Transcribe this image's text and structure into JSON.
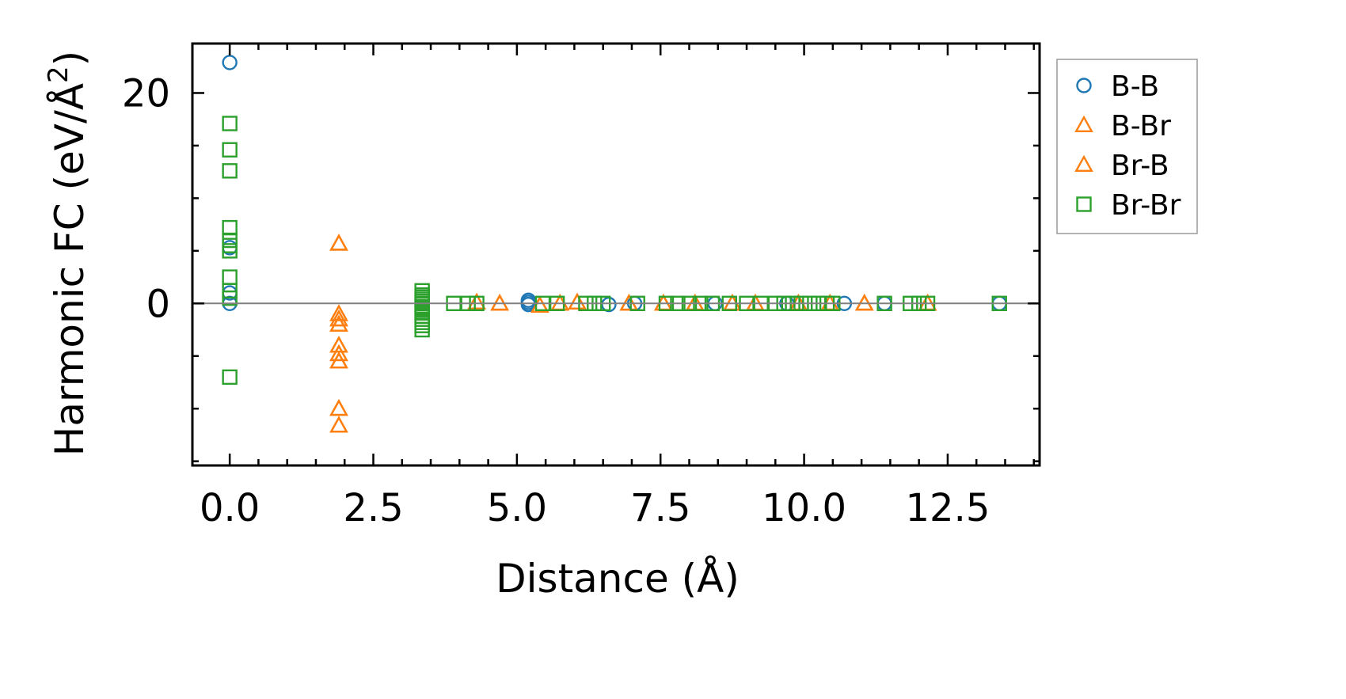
{
  "chart_data": {
    "type": "scatter",
    "xlabel": "Distance (Å)",
    "ylabel_main": "Harmonic FC (eV/Å",
    "ylabel_sup": "2",
    "ylabel_close": ")",
    "xlim": [
      -0.65,
      14.1
    ],
    "ylim": [
      -15.4,
      24.7
    ],
    "x_ticks": [
      0.0,
      2.5,
      5.0,
      7.5,
      10.0,
      12.5
    ],
    "x_tick_labels": [
      "0.0",
      "2.5",
      "5.0",
      "7.5",
      "10.0",
      "12.5"
    ],
    "y_ticks": [
      0,
      20
    ],
    "y_tick_labels": [
      "0",
      "20"
    ],
    "grid": false,
    "zero_line": true,
    "legend_position": "outside-right",
    "series": [
      {
        "name": "B-B",
        "marker": "circle",
        "color": "#1f77b4",
        "x": [
          0.0,
          0.0,
          0.0,
          0.0,
          5.2,
          5.2,
          5.2,
          6.6,
          7.05,
          8.45,
          9.7,
          10.7,
          11.4,
          13.4
        ],
        "y": [
          22.9,
          5.3,
          1.0,
          0.0,
          0.3,
          0.1,
          -0.1,
          -0.1,
          0.0,
          0.0,
          0.0,
          0.0,
          0.0,
          0.0
        ]
      },
      {
        "name": "B-Br",
        "marker": "triangle",
        "color": "#ff7f0e",
        "x": [
          1.9,
          1.9,
          1.9,
          1.9,
          1.9,
          1.9,
          1.9,
          1.9,
          1.9,
          4.3,
          4.7,
          5.4,
          5.75,
          6.05,
          6.95,
          7.55,
          8.1,
          8.75,
          9.15,
          9.9,
          10.45,
          11.05,
          12.15
        ],
        "y": [
          5.7,
          -1.0,
          -1.5,
          -2.0,
          -4.0,
          -4.8,
          -5.5,
          -10.0,
          -11.6,
          0.1,
          0.0,
          -0.2,
          0.0,
          0.1,
          0.0,
          0.0,
          0.0,
          0.0,
          0.0,
          0.0,
          0.0,
          0.0,
          0.0
        ]
      },
      {
        "name": "Br-B",
        "marker": "triangle",
        "color": "#ff7f0e",
        "x": [
          1.9,
          1.9,
          1.9,
          1.9,
          1.9,
          1.9,
          1.9,
          1.9,
          1.9,
          4.3,
          4.7,
          5.4,
          5.75,
          6.05,
          6.95,
          7.55,
          8.1,
          8.75,
          9.15,
          9.9,
          10.45,
          11.05,
          12.15
        ],
        "y": [
          5.7,
          -1.0,
          -1.5,
          -2.0,
          -4.0,
          -4.8,
          -5.5,
          -10.0,
          -11.6,
          0.1,
          0.0,
          -0.2,
          0.0,
          0.1,
          0.0,
          0.0,
          0.0,
          0.0,
          0.0,
          0.0,
          0.0,
          0.0,
          0.0
        ]
      },
      {
        "name": "Br-Br",
        "marker": "square",
        "color": "#2ca02c",
        "x": [
          0.0,
          0.0,
          0.0,
          0.0,
          0.0,
          0.0,
          0.0,
          0.0,
          0.0,
          0.0,
          0.0,
          3.35,
          3.35,
          3.35,
          3.35,
          3.35,
          3.35,
          3.35,
          3.35,
          3.35,
          3.35,
          3.35,
          3.35,
          3.35,
          3.35,
          3.35,
          3.35,
          3.9,
          4.15,
          4.3,
          5.45,
          5.7,
          6.2,
          6.35,
          6.5,
          7.1,
          7.6,
          7.8,
          8.0,
          8.2,
          8.4,
          8.7,
          9.0,
          9.25,
          9.5,
          9.65,
          9.8,
          9.95,
          10.1,
          10.25,
          10.4,
          10.5,
          11.4,
          11.85,
          12.0,
          12.15,
          13.4
        ],
        "y": [
          17.1,
          14.6,
          12.6,
          7.2,
          6.0,
          5.5,
          5.0,
          2.5,
          1.2,
          0.5,
          -7.0,
          1.2,
          0.8,
          0.4,
          0.0,
          -0.3,
          -0.6,
          -0.9,
          -1.2,
          -1.5,
          -1.8,
          -2.1,
          -2.5,
          0.6,
          0.2,
          -0.4,
          -0.8,
          0.0,
          0.0,
          0.0,
          0.0,
          0.0,
          0.0,
          0.0,
          0.0,
          0.0,
          0.0,
          0.0,
          0.0,
          0.0,
          0.0,
          0.0,
          0.0,
          0.0,
          0.0,
          0.0,
          0.0,
          0.0,
          0.0,
          0.0,
          0.0,
          0.0,
          0.0,
          0.0,
          0.0,
          0.0,
          0.0
        ]
      }
    ]
  }
}
